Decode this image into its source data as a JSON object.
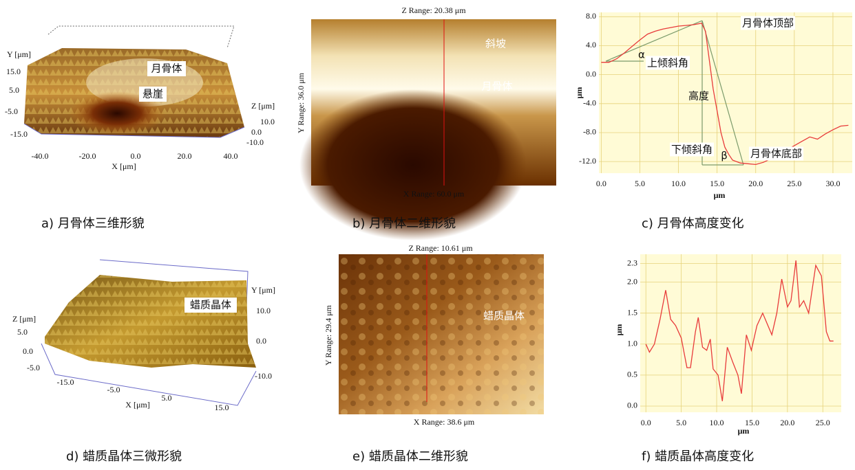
{
  "panels": {
    "a": {
      "caption": "a) 月骨体三维形貌",
      "y_axis_label": "Y [μm]",
      "y_ticks": [
        "15.0",
        "5.0",
        "-5.0",
        "-15.0"
      ],
      "z_axis_label": "Z [μm]",
      "z_ticks": [
        "10.0",
        "0.0",
        "-10.0"
      ],
      "x_ticks": [
        "-40.0",
        "-20.0",
        "0.0",
        "20.0",
        "40.0"
      ],
      "x_axis_label": "X [μm]",
      "annotations": [
        "月骨体",
        "悬崖"
      ]
    },
    "b": {
      "caption": "b) 月骨体二维形貌",
      "z_range": "Z Range: 20.38 μm",
      "y_range": "Y Range: 36.0 μm",
      "x_range": "X Range: 60.0 μm",
      "annotations": [
        "斜坡",
        "月骨体"
      ]
    },
    "d": {
      "caption": "d) 蜡质晶体三微形貌",
      "z_axis_label": "Z [μm]",
      "z_ticks": [
        "5.0",
        "0.0",
        "-5.0"
      ],
      "x_ticks": [
        "-15.0",
        "-5.0",
        "5.0",
        "15.0"
      ],
      "x_axis_label": "X [μm]",
      "y_axis_label": "Y [μm]",
      "y_ticks": [
        "10.0",
        "0.0",
        "-10.0"
      ],
      "annotations": [
        "蜡质晶体"
      ]
    },
    "e": {
      "caption": "e) 蜡质晶体二维形貌",
      "z_range": "Z Range: 10.61 μm",
      "y_range": "Y Range: 29.4 μm",
      "x_range": "X Range: 38.6 μm",
      "annotations": [
        "蜡质晶体"
      ]
    }
  },
  "chart_data": [
    {
      "type": "line",
      "caption": "c) 月骨体高度变化",
      "xlabel": "μm",
      "ylabel": "μm",
      "color": "#e83a3a",
      "grid": true,
      "x": [
        0,
        1,
        2,
        3,
        4,
        5,
        6,
        7,
        8,
        9,
        10,
        11,
        12,
        13,
        13.5,
        14,
        14.5,
        15,
        15.5,
        16,
        16.5,
        17,
        18,
        19,
        20,
        21,
        22,
        23,
        24,
        25,
        26,
        27,
        28,
        29,
        30,
        31,
        32
      ],
      "values": [
        1.7,
        1.7,
        2.2,
        3,
        3.9,
        4.8,
        5.6,
        6,
        6.3,
        6.5,
        6.7,
        6.8,
        6.9,
        7.1,
        6,
        2,
        -2,
        -5,
        -8,
        -10,
        -11,
        -11.8,
        -12.2,
        -12.3,
        -12.4,
        -12.1,
        -11.6,
        -11,
        -10.4,
        -9.8,
        -9.2,
        -8.6,
        -8.9,
        -8.2,
        -7.6,
        -7.1,
        -7
      ],
      "xlim": [
        -0.3,
        32.5
      ],
      "ylim": [
        -13.6,
        8.6
      ],
      "xticks": [
        {
          "value": 0,
          "label": "0.0"
        },
        {
          "value": 5,
          "label": "5.0"
        },
        {
          "value": 10,
          "label": "10.0"
        },
        {
          "value": 15,
          "label": "15.0"
        },
        {
          "value": 20,
          "label": "20.0"
        },
        {
          "value": 25,
          "label": "25.0"
        },
        {
          "value": 30,
          "label": "30.0"
        }
      ],
      "yticks": [
        {
          "value": 8,
          "label": "8.0"
        },
        {
          "value": 4,
          "label": "4.0"
        },
        {
          "value": 0,
          "label": "0.0"
        },
        {
          "value": -4,
          "label": "-4.0"
        },
        {
          "value": -8,
          "label": "-8.0"
        },
        {
          "value": -12,
          "label": "-12.0"
        }
      ],
      "annotations": [
        "月骨体顶部",
        "α",
        "上倾斜角",
        "高度",
        "下倾斜角",
        "β",
        "月骨体底部"
      ]
    },
    {
      "type": "line",
      "caption": "f) 蜡质晶体高度变化",
      "xlabel": "μm",
      "ylabel": "μm",
      "color": "#e83a3a",
      "grid": true,
      "x": [
        0,
        0.5,
        1.2,
        2,
        2.8,
        3.5,
        4.2,
        5,
        5.8,
        6.3,
        7,
        7.4,
        8,
        8.6,
        9.1,
        9.5,
        10.2,
        10.8,
        11.5,
        12.3,
        13,
        13.5,
        14.2,
        14.9,
        15.7,
        16.5,
        17.8,
        18.5,
        19.2,
        20,
        20.5,
        21.2,
        21.7,
        22.3,
        23,
        24,
        24.8,
        25.5,
        26,
        26.5
      ],
      "values": [
        1.0,
        0.87,
        1.0,
        1.4,
        1.87,
        1.4,
        1.3,
        1.1,
        0.62,
        0.62,
        1.2,
        1.43,
        0.95,
        0.9,
        1.08,
        0.6,
        0.5,
        0.08,
        0.95,
        0.7,
        0.5,
        0.2,
        1.15,
        0.9,
        1.3,
        1.5,
        1.15,
        1.5,
        2.05,
        1.6,
        1.7,
        2.35,
        1.6,
        1.7,
        1.5,
        2.27,
        2.1,
        1.2,
        1.05,
        1.05
      ],
      "xlim": [
        -0.8,
        27.6
      ],
      "ylim": [
        -0.1,
        2.45
      ],
      "xticks": [
        {
          "value": 0,
          "label": "0.0"
        },
        {
          "value": 5,
          "label": "5.0"
        },
        {
          "value": 10,
          "label": "10.0"
        },
        {
          "value": 15,
          "label": "15.0"
        },
        {
          "value": 20,
          "label": "20.0"
        },
        {
          "value": 25,
          "label": "25.0"
        }
      ],
      "yticks": [
        {
          "value": 0,
          "label": "0.0"
        },
        {
          "value": 0.5,
          "label": "0.5"
        },
        {
          "value": 1,
          "label": "1.0"
        },
        {
          "value": 1.5,
          "label": "1.5"
        },
        {
          "value": 2,
          "label": "2.0"
        },
        {
          "value": 2.3,
          "label": "2.3"
        }
      ]
    }
  ]
}
